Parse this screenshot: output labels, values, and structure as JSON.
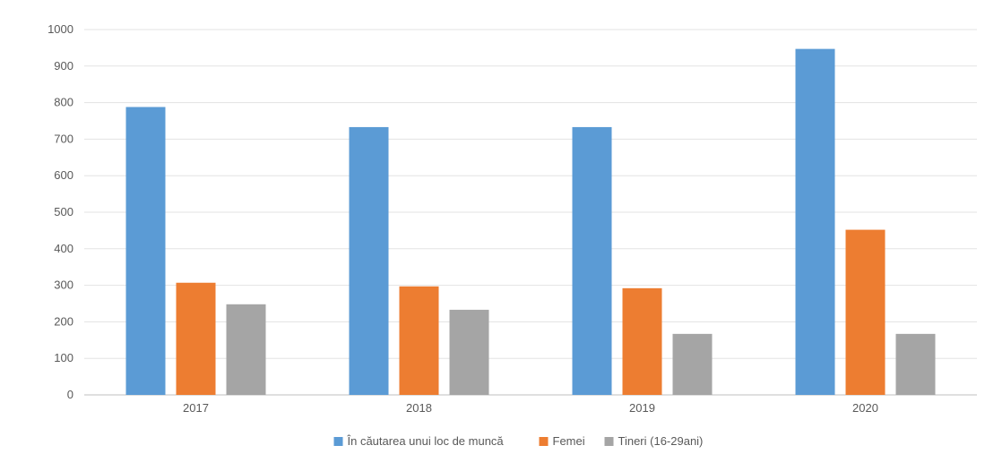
{
  "chart_data": {
    "type": "bar",
    "categories": [
      "2017",
      "2018",
      "2019",
      "2020"
    ],
    "series": [
      {
        "name": "În căutarea unui loc de muncă",
        "color": "#5b9bd5",
        "values": [
          788,
          733,
          733,
          947
        ]
      },
      {
        "name": "Femei",
        "color": "#ed7d31",
        "values": [
          307,
          297,
          292,
          452
        ]
      },
      {
        "name": "Tineri (16-29ani)",
        "color": "#a5a5a5",
        "values": [
          248,
          233,
          167,
          167
        ]
      }
    ],
    "title": "",
    "xlabel": "",
    "ylabel": "",
    "ylim": [
      0,
      1000
    ],
    "yticks": [
      "0",
      "100",
      "200",
      "300",
      "400",
      "500",
      "600",
      "700",
      "800",
      "900",
      "1000"
    ],
    "grid": true,
    "legend_position": "bottom"
  }
}
